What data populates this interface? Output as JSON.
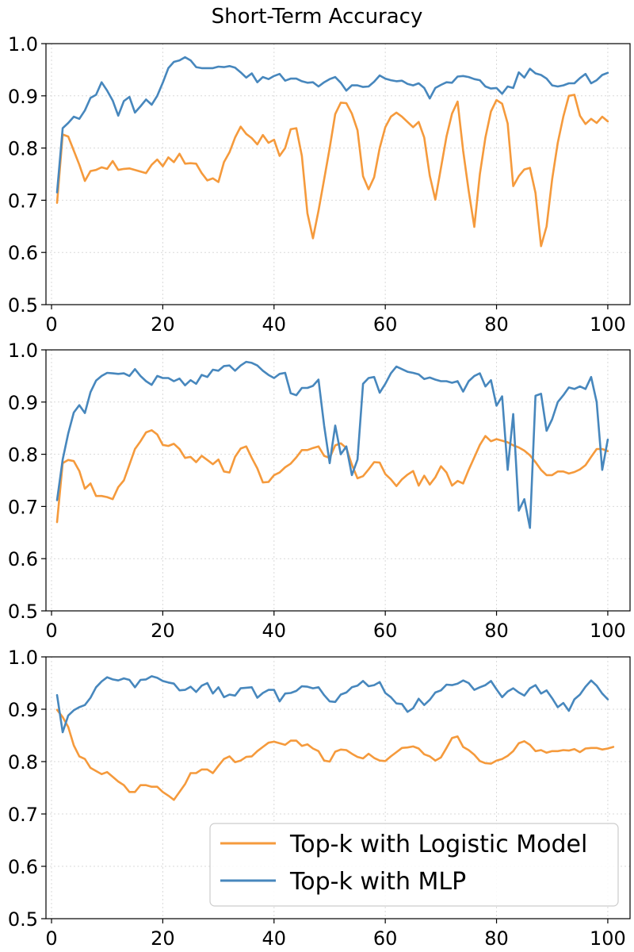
{
  "title": "Short-Term Accuracy",
  "colors": {
    "logistic": "#f59a3c",
    "mlp": "#4787bd",
    "grid": "#d9d9d9",
    "axis": "#000000"
  },
  "legend": {
    "placement": "lower-right",
    "labels": [
      "Top-k with Logistic Model",
      "Top-k with MLP"
    ]
  },
  "chart_data": [
    {
      "type": "line",
      "xlim": [
        -1,
        104
      ],
      "ylim": [
        0.5,
        1.0
      ],
      "xticks": [
        0,
        20,
        40,
        60,
        80,
        100
      ],
      "yticks": [
        0.5,
        0.6,
        0.7,
        0.8,
        0.9,
        1.0
      ],
      "ytick_labels": [
        "0.5",
        "0.6",
        "0.7",
        "0.8",
        "0.9",
        "1.0"
      ],
      "grid": true,
      "x_start": 1,
      "series": [
        {
          "name": "Top-k with Logistic Model",
          "color": "#f59a3c",
          "values": [
            0.695,
            0.826,
            0.822,
            0.795,
            0.768,
            0.737,
            0.756,
            0.758,
            0.763,
            0.76,
            0.775,
            0.758,
            0.76,
            0.761,
            0.758,
            0.755,
            0.752,
            0.768,
            0.778,
            0.765,
            0.782,
            0.773,
            0.789,
            0.77,
            0.771,
            0.77,
            0.752,
            0.738,
            0.742,
            0.735,
            0.773,
            0.792,
            0.82,
            0.841,
            0.827,
            0.819,
            0.807,
            0.825,
            0.81,
            0.816,
            0.785,
            0.8,
            0.836,
            0.838,
            0.785,
            0.675,
            0.627,
            0.68,
            0.74,
            0.8,
            0.865,
            0.887,
            0.886,
            0.866,
            0.834,
            0.746,
            0.721,
            0.744,
            0.8,
            0.84,
            0.86,
            0.868,
            0.86,
            0.85,
            0.84,
            0.85,
            0.82,
            0.747,
            0.701,
            0.762,
            0.822,
            0.866,
            0.889,
            0.795,
            0.718,
            0.649,
            0.75,
            0.82,
            0.87,
            0.892,
            0.885,
            0.847,
            0.727,
            0.746,
            0.759,
            0.762,
            0.714,
            0.612,
            0.65,
            0.74,
            0.81,
            0.86,
            0.9,
            0.902,
            0.862,
            0.846,
            0.856,
            0.848,
            0.86,
            0.851
          ]
        },
        {
          "name": "Top-k with MLP",
          "color": "#4787bd",
          "values": [
            0.715,
            0.838,
            0.848,
            0.86,
            0.856,
            0.872,
            0.896,
            0.902,
            0.926,
            0.91,
            0.891,
            0.862,
            0.89,
            0.898,
            0.868,
            0.88,
            0.893,
            0.883,
            0.9,
            0.925,
            0.953,
            0.965,
            0.968,
            0.974,
            0.968,
            0.955,
            0.953,
            0.953,
            0.953,
            0.956,
            0.955,
            0.957,
            0.954,
            0.945,
            0.935,
            0.943,
            0.926,
            0.936,
            0.932,
            0.938,
            0.942,
            0.929,
            0.933,
            0.933,
            0.928,
            0.925,
            0.926,
            0.918,
            0.926,
            0.932,
            0.936,
            0.925,
            0.91,
            0.92,
            0.92,
            0.917,
            0.918,
            0.927,
            0.939,
            0.933,
            0.93,
            0.928,
            0.929,
            0.923,
            0.92,
            0.924,
            0.915,
            0.895,
            0.915,
            0.921,
            0.926,
            0.925,
            0.937,
            0.938,
            0.936,
            0.932,
            0.93,
            0.918,
            0.914,
            0.915,
            0.904,
            0.918,
            0.915,
            0.945,
            0.935,
            0.952,
            0.943,
            0.94,
            0.933,
            0.92,
            0.918,
            0.92,
            0.924,
            0.924,
            0.934,
            0.942,
            0.924,
            0.93,
            0.94,
            0.944
          ]
        }
      ]
    },
    {
      "type": "line",
      "xlim": [
        -1,
        104
      ],
      "ylim": [
        0.5,
        1.0
      ],
      "xticks": [
        0,
        20,
        40,
        60,
        80,
        100
      ],
      "yticks": [
        0.5,
        0.6,
        0.7,
        0.8,
        0.9,
        1.0
      ],
      "ytick_labels": [
        "0.5",
        "0.6",
        "0.7",
        "0.8",
        "0.9",
        "1.0"
      ],
      "grid": true,
      "x_start": 1,
      "series": [
        {
          "name": "Top-k with Logistic Model",
          "color": "#f59a3c",
          "values": [
            0.67,
            0.783,
            0.789,
            0.787,
            0.768,
            0.734,
            0.744,
            0.72,
            0.72,
            0.718,
            0.714,
            0.737,
            0.75,
            0.78,
            0.81,
            0.825,
            0.842,
            0.846,
            0.838,
            0.818,
            0.816,
            0.82,
            0.81,
            0.793,
            0.795,
            0.785,
            0.797,
            0.789,
            0.781,
            0.79,
            0.767,
            0.765,
            0.795,
            0.811,
            0.815,
            0.793,
            0.773,
            0.746,
            0.747,
            0.76,
            0.765,
            0.775,
            0.782,
            0.794,
            0.808,
            0.808,
            0.812,
            0.815,
            0.797,
            0.793,
            0.817,
            0.821,
            0.812,
            0.78,
            0.754,
            0.758,
            0.771,
            0.785,
            0.784,
            0.762,
            0.752,
            0.739,
            0.752,
            0.761,
            0.768,
            0.74,
            0.759,
            0.742,
            0.756,
            0.777,
            0.765,
            0.74,
            0.749,
            0.744,
            0.77,
            0.794,
            0.818,
            0.835,
            0.825,
            0.829,
            0.826,
            0.823,
            0.817,
            0.813,
            0.807,
            0.798,
            0.785,
            0.77,
            0.76,
            0.76,
            0.767,
            0.767,
            0.763,
            0.766,
            0.771,
            0.779,
            0.795,
            0.81,
            0.81,
            0.806
          ]
        },
        {
          "name": "Top-k with MLP",
          "color": "#4787bd",
          "values": [
            0.712,
            0.79,
            0.84,
            0.88,
            0.894,
            0.879,
            0.919,
            0.941,
            0.95,
            0.956,
            0.955,
            0.954,
            0.955,
            0.95,
            0.963,
            0.95,
            0.94,
            0.933,
            0.95,
            0.946,
            0.946,
            0.94,
            0.945,
            0.932,
            0.942,
            0.935,
            0.952,
            0.948,
            0.962,
            0.96,
            0.969,
            0.97,
            0.96,
            0.97,
            0.977,
            0.975,
            0.97,
            0.96,
            0.952,
            0.946,
            0.954,
            0.956,
            0.917,
            0.913,
            0.927,
            0.927,
            0.931,
            0.943,
            0.855,
            0.783,
            0.855,
            0.8,
            0.815,
            0.76,
            0.79,
            0.935,
            0.946,
            0.948,
            0.918,
            0.935,
            0.955,
            0.968,
            0.963,
            0.958,
            0.956,
            0.953,
            0.944,
            0.947,
            0.943,
            0.94,
            0.94,
            0.937,
            0.94,
            0.92,
            0.94,
            0.95,
            0.955,
            0.93,
            0.942,
            0.893,
            0.911,
            0.77,
            0.877,
            0.692,
            0.714,
            0.659,
            0.912,
            0.916,
            0.845,
            0.867,
            0.9,
            0.913,
            0.928,
            0.925,
            0.93,
            0.925,
            0.948,
            0.9,
            0.77,
            0.828
          ]
        }
      ]
    },
    {
      "type": "line",
      "xlim": [
        -1,
        104
      ],
      "ylim": [
        0.5,
        1.0
      ],
      "xticks": [
        0,
        20,
        40,
        60,
        80,
        100
      ],
      "yticks": [
        0.5,
        0.6,
        0.7,
        0.8,
        0.9,
        1.0
      ],
      "ytick_labels": [
        "0.5",
        "0.6",
        "0.7",
        "0.8",
        "0.9",
        "1.0"
      ],
      "grid": true,
      "x_start": 1,
      "series": [
        {
          "name": "Top-k with Logistic Model",
          "color": "#f59a3c",
          "values": [
            0.899,
            0.885,
            0.866,
            0.831,
            0.81,
            0.805,
            0.788,
            0.782,
            0.776,
            0.78,
            0.771,
            0.762,
            0.755,
            0.742,
            0.742,
            0.755,
            0.755,
            0.752,
            0.752,
            0.742,
            0.735,
            0.727,
            0.742,
            0.757,
            0.778,
            0.778,
            0.785,
            0.785,
            0.778,
            0.792,
            0.805,
            0.81,
            0.799,
            0.802,
            0.809,
            0.81,
            0.82,
            0.828,
            0.836,
            0.838,
            0.835,
            0.832,
            0.84,
            0.84,
            0.83,
            0.833,
            0.825,
            0.82,
            0.802,
            0.8,
            0.819,
            0.823,
            0.822,
            0.815,
            0.809,
            0.806,
            0.815,
            0.807,
            0.802,
            0.801,
            0.81,
            0.818,
            0.826,
            0.827,
            0.829,
            0.825,
            0.814,
            0.81,
            0.802,
            0.808,
            0.826,
            0.845,
            0.848,
            0.828,
            0.822,
            0.813,
            0.801,
            0.797,
            0.796,
            0.802,
            0.805,
            0.811,
            0.82,
            0.835,
            0.839,
            0.832,
            0.82,
            0.822,
            0.817,
            0.82,
            0.82,
            0.822,
            0.821,
            0.824,
            0.818,
            0.825,
            0.826,
            0.826,
            0.823,
            0.825,
            0.828
          ]
        },
        {
          "name": "Top-k with MLP",
          "color": "#4787bd",
          "values": [
            0.927,
            0.856,
            0.888,
            0.898,
            0.904,
            0.908,
            0.922,
            0.942,
            0.953,
            0.961,
            0.957,
            0.955,
            0.959,
            0.956,
            0.942,
            0.956,
            0.957,
            0.963,
            0.96,
            0.954,
            0.951,
            0.949,
            0.936,
            0.937,
            0.943,
            0.933,
            0.945,
            0.95,
            0.93,
            0.942,
            0.923,
            0.928,
            0.926,
            0.94,
            0.941,
            0.942,
            0.922,
            0.931,
            0.937,
            0.937,
            0.915,
            0.93,
            0.931,
            0.935,
            0.944,
            0.943,
            0.94,
            0.942,
            0.927,
            0.915,
            0.914,
            0.928,
            0.932,
            0.942,
            0.945,
            0.954,
            0.944,
            0.946,
            0.952,
            0.931,
            0.923,
            0.911,
            0.91,
            0.895,
            0.902,
            0.92,
            0.908,
            0.918,
            0.932,
            0.936,
            0.947,
            0.946,
            0.949,
            0.955,
            0.95,
            0.937,
            0.942,
            0.946,
            0.954,
            0.938,
            0.923,
            0.934,
            0.94,
            0.932,
            0.926,
            0.94,
            0.946,
            0.93,
            0.936,
            0.921,
            0.904,
            0.912,
            0.897,
            0.919,
            0.928,
            0.943,
            0.955,
            0.945,
            0.93,
            0.919
          ]
        }
      ]
    }
  ]
}
